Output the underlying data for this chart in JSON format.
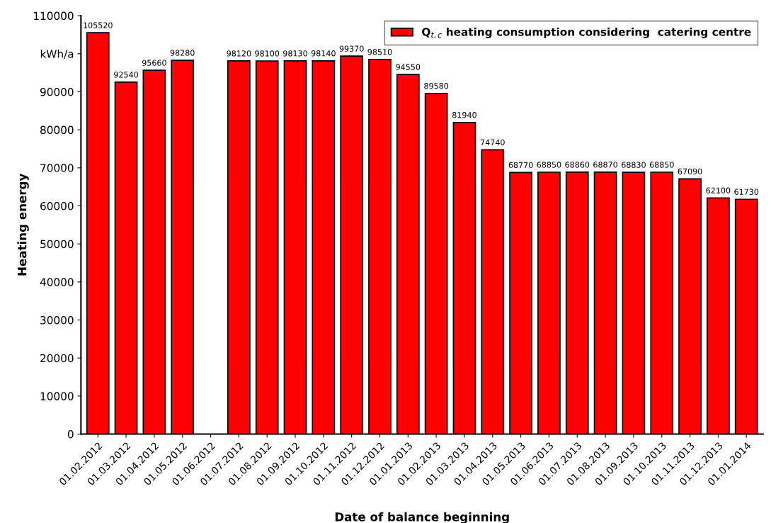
{
  "chart_data": {
    "type": "bar",
    "xlabel": "Date of balance beginning",
    "ylabel": "Heating energy",
    "categories": [
      "01.02.2012",
      "01.03.2012",
      "01.04.2012",
      "01.05.2012",
      "01.06.2012",
      "01.07.2012",
      "01.08.2012",
      "01.09.2012",
      "01.10.2012",
      "01.11.2012",
      "01.12.2012",
      "01.01.2013",
      "01.02.2013",
      "01.03.2013",
      "01.04.2013",
      "01.05.2013",
      "01.06.2013",
      "01.07.2013",
      "01.08.2013",
      "01.09.2013",
      "01.10.2013",
      "01.11.2013",
      "01.12.2013",
      "01.01.2014"
    ],
    "series": [
      {
        "name": "Q$_{t,c}$ heating consumption considering  catering centre",
        "color": "#ff0000",
        "values": [
          105520,
          92540,
          95660,
          98280,
          null,
          98120,
          98100,
          98130,
          98140,
          99370,
          98510,
          94550,
          89580,
          81940,
          74740,
          68770,
          68850,
          68860,
          68870,
          68830,
          68850,
          67090,
          62100,
          61730
        ]
      }
    ],
    "ylim": [
      0,
      110000
    ],
    "yticks": [
      0,
      10000,
      20000,
      30000,
      40000,
      50000,
      60000,
      70000,
      80000,
      90000,
      {
        "value": 100000,
        "label": "kWh/a"
      },
      110000
    ],
    "data_labels": true,
    "legend": "top right"
  }
}
